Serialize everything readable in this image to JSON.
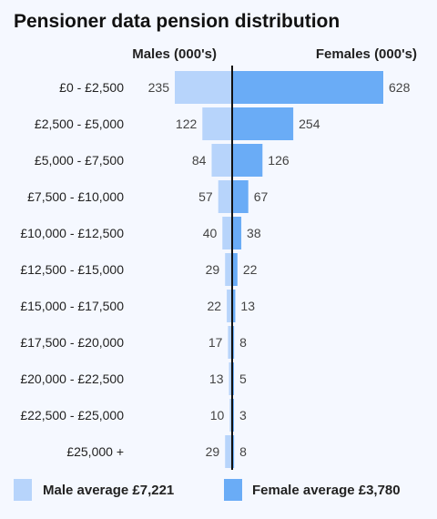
{
  "chart_data": {
    "type": "bar",
    "title": "Pensioner data pension distribution",
    "categories": [
      "£0 - £2,500",
      "£2,500 - £5,000",
      "£5,000 - £7,500",
      "£7,500 - £10,000",
      "£10,000 - £12,500",
      "£12,500 - £15,000",
      "£15,000 - £17,500",
      "£17,500 - £20,000",
      "£20,000 - £22,500",
      "£22,500 - £25,000",
      "£25,000 +"
    ],
    "series": [
      {
        "name": "Males (000's)",
        "color": "#b7d4fb",
        "values": [
          235,
          122,
          84,
          57,
          40,
          29,
          22,
          17,
          13,
          10,
          29
        ]
      },
      {
        "name": "Females (000's)",
        "color": "#6aacf6",
        "values": [
          628,
          254,
          126,
          67,
          38,
          22,
          13,
          8,
          5,
          3,
          8
        ]
      }
    ],
    "legend": {
      "position": "bottom",
      "items": [
        {
          "label": "Male average £7,221",
          "color": "#b7d4fb"
        },
        {
          "label": "Female average £3,780",
          "color": "#6aacf6"
        }
      ]
    },
    "axis_color": "#111111"
  }
}
